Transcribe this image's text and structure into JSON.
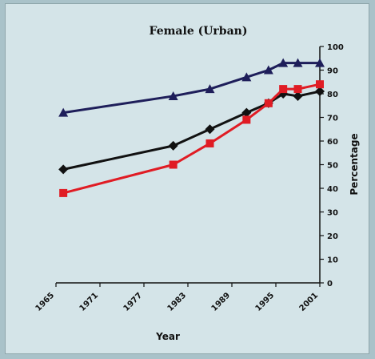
{
  "chart_data": {
    "type": "line",
    "title": "Female (Urban)",
    "xlabel": "Year",
    "ylabel": "Percentage",
    "x_ticks": [
      "1965",
      "1971",
      "1977",
      "1983",
      "1989",
      "1995",
      "2001"
    ],
    "x_range": [
      1965,
      2001
    ],
    "ylim": [
      0,
      100
    ],
    "y_ticks": [
      0,
      10,
      20,
      30,
      40,
      50,
      60,
      70,
      80,
      90,
      100
    ],
    "y_axis_side": "right",
    "grid": false,
    "legend": "none",
    "series": [
      {
        "color": "#1e1e5a",
        "marker": "triangle",
        "x": [
          1966,
          1981,
          1986,
          1991,
          1994,
          1996,
          1998,
          2001
        ],
        "values": [
          72,
          79,
          82,
          87,
          90,
          93,
          93,
          93
        ]
      },
      {
        "color": "#111111",
        "marker": "diamond",
        "x": [
          1966,
          1981,
          1986,
          1991,
          1994,
          1996,
          1998,
          2001
        ],
        "values": [
          48,
          58,
          65,
          72,
          76,
          80,
          79,
          81
        ]
      },
      {
        "color": "#e01c24",
        "marker": "square",
        "x": [
          1966,
          1981,
          1986,
          1991,
          1994,
          1996,
          1998,
          2001
        ],
        "values": [
          38,
          50,
          59,
          69,
          76,
          82,
          82,
          84
        ]
      }
    ]
  }
}
